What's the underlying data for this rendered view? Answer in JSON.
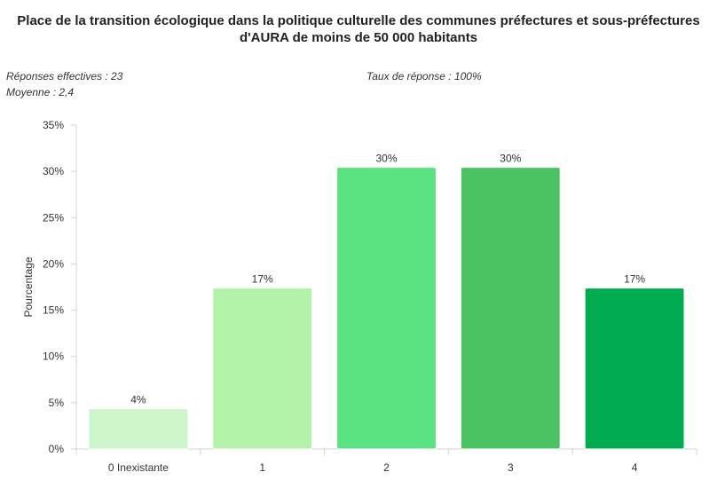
{
  "title_line1": "Place de la transition écologique dans la politique culturelle des communes préfectures et sous-préfectures",
  "title_line2": "d'AURA de moins de 50 000 habitants",
  "responses": "Réponses effectives : 23",
  "response_rate": "Taux de réponse : 100%",
  "average": "Moyenne : 2,4",
  "chart_data": {
    "type": "bar",
    "categories": [
      "0 Inexistante",
      "1",
      "2",
      "3",
      "4"
    ],
    "values": [
      4.35,
      17.39,
      30.43,
      30.43,
      17.39
    ],
    "value_labels": [
      "4%",
      "17%",
      "30%",
      "30%",
      "17%"
    ],
    "colors": [
      "#cdf5cc",
      "#b2f3a9",
      "#59e27f",
      "#4cc362",
      "#00ac4f"
    ],
    "ylabel": "Pourcentage",
    "ylim": [
      0,
      35
    ],
    "yticks": [
      0,
      5,
      10,
      15,
      20,
      25,
      30,
      35
    ],
    "ytick_labels": [
      "0%",
      "5%",
      "10%",
      "15%",
      "20%",
      "25%",
      "30%",
      "35%"
    ],
    "grid": false
  }
}
